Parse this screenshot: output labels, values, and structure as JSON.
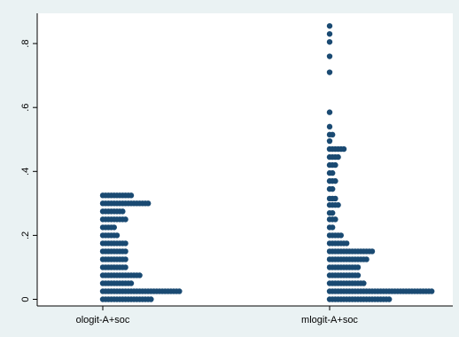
{
  "chart_data": {
    "type": "dotplot",
    "title": "",
    "xlabel": "",
    "ylabel": "",
    "ylim": [
      -0.02,
      0.87
    ],
    "yticks": [
      0,
      0.2,
      0.4,
      0.6,
      0.8
    ],
    "ytick_labels": [
      "0",
      ".2",
      ".4",
      ".6",
      ".8"
    ],
    "categories": [
      "ologit-A+soc",
      "mlogit-A+soc"
    ],
    "marker_color": "#1a4a72",
    "background_outer": "#eaf2f3",
    "background_plot": "#ffffff",
    "grid": false,
    "legend": "none",
    "groups": [
      {
        "category": "ologit-A+soc",
        "bins": [
          {
            "y": 0.0,
            "count": 18
          },
          {
            "y": 0.025,
            "count": 28
          },
          {
            "y": 0.05,
            "count": 11
          },
          {
            "y": 0.075,
            "count": 14
          },
          {
            "y": 0.1,
            "count": 9
          },
          {
            "y": 0.125,
            "count": 9
          },
          {
            "y": 0.15,
            "count": 9
          },
          {
            "y": 0.175,
            "count": 9
          },
          {
            "y": 0.2,
            "count": 6
          },
          {
            "y": 0.225,
            "count": 5
          },
          {
            "y": 0.25,
            "count": 9
          },
          {
            "y": 0.275,
            "count": 8
          },
          {
            "y": 0.3,
            "count": 17
          },
          {
            "y": 0.325,
            "count": 11
          }
        ]
      },
      {
        "category": "mlogit-A+soc",
        "bins": [
          {
            "y": 0.0,
            "count": 22
          },
          {
            "y": 0.025,
            "count": 37
          },
          {
            "y": 0.05,
            "count": 13
          },
          {
            "y": 0.075,
            "count": 11
          },
          {
            "y": 0.1,
            "count": 11
          },
          {
            "y": 0.125,
            "count": 14
          },
          {
            "y": 0.15,
            "count": 16
          },
          {
            "y": 0.175,
            "count": 7
          },
          {
            "y": 0.2,
            "count": 5
          },
          {
            "y": 0.225,
            "count": 2
          },
          {
            "y": 0.25,
            "count": 3
          },
          {
            "y": 0.27,
            "count": 2
          },
          {
            "y": 0.295,
            "count": 4
          },
          {
            "y": 0.315,
            "count": 3
          },
          {
            "y": 0.345,
            "count": 2
          },
          {
            "y": 0.37,
            "count": 3
          },
          {
            "y": 0.395,
            "count": 2
          },
          {
            "y": 0.42,
            "count": 3
          },
          {
            "y": 0.445,
            "count": 4
          },
          {
            "y": 0.47,
            "count": 6
          },
          {
            "y": 0.495,
            "count": 1
          },
          {
            "y": 0.515,
            "count": 2
          },
          {
            "y": 0.54,
            "count": 1
          },
          {
            "y": 0.585,
            "count": 1
          },
          {
            "y": 0.71,
            "count": 1
          },
          {
            "y": 0.76,
            "count": 1
          },
          {
            "y": 0.805,
            "count": 1
          },
          {
            "y": 0.83,
            "count": 1
          },
          {
            "y": 0.855,
            "count": 1
          }
        ]
      }
    ]
  }
}
